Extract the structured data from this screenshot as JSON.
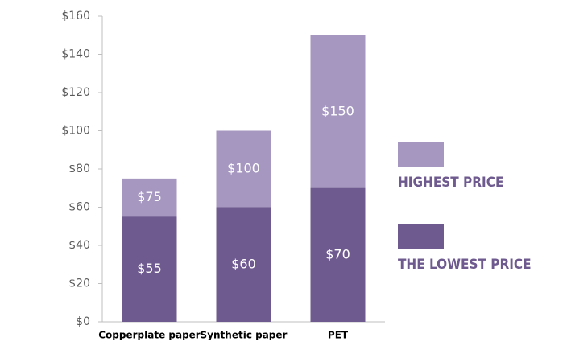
{
  "chart_data": {
    "type": "bar",
    "overlap": true,
    "categories": [
      "Copperplate paper",
      "Synthetic paper",
      "PET"
    ],
    "series": [
      {
        "name": "HIGHEST PRICE",
        "color": "#a597bf",
        "values": [
          75,
          100,
          150
        ],
        "value_labels": [
          "$75",
          "$100",
          "$150"
        ]
      },
      {
        "name": "THE LOWEST PRICE",
        "color": "#6e5a8e",
        "values": [
          55,
          60,
          70
        ],
        "value_labels": [
          "$55",
          "$60",
          "$70"
        ]
      }
    ],
    "ylim": [
      0,
      160
    ],
    "yticks": [
      {
        "value": 0,
        "label": "$0"
      },
      {
        "value": 20,
        "label": "$20"
      },
      {
        "value": 40,
        "label": "$40"
      },
      {
        "value": 60,
        "label": "$60"
      },
      {
        "value": 80,
        "label": "$80"
      },
      {
        "value": 100,
        "label": "$100"
      },
      {
        "value": 120,
        "label": "$120"
      },
      {
        "value": 140,
        "label": "$140"
      },
      {
        "value": 160,
        "label": "$160"
      }
    ],
    "grid": false,
    "legend": "right"
  }
}
